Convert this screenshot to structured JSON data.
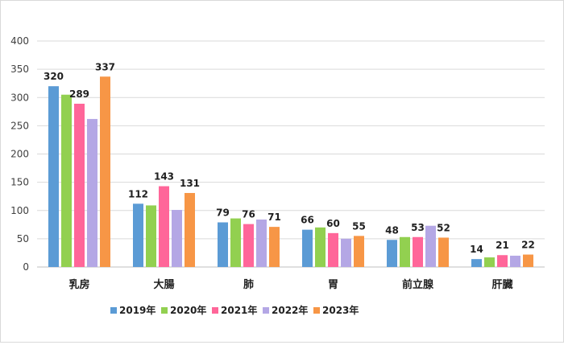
{
  "chart_data": {
    "type": "bar",
    "title": "",
    "xlabel": "",
    "ylabel": "",
    "ylim": [
      0,
      400
    ],
    "yticks": [
      0,
      50,
      100,
      150,
      200,
      250,
      300,
      350,
      400
    ],
    "grid": true,
    "legend_position": "bottom",
    "categories": [
      "乳房",
      "大腸",
      "肺",
      "胃",
      "前立腺",
      "肝臓"
    ],
    "series": [
      {
        "name": "2019年",
        "color": "#5b9bd5",
        "values": [
          320,
          112,
          79,
          66,
          48,
          14
        ],
        "labels": [
          "320",
          "112",
          "79",
          "66",
          "48",
          "14"
        ]
      },
      {
        "name": "2020年",
        "color": "#92d050",
        "values": [
          305,
          109,
          86,
          70,
          53,
          17
        ],
        "labels": [
          "",
          "",
          "",
          "",
          "",
          ""
        ]
      },
      {
        "name": "2021年",
        "color": "#ff6699",
        "values": [
          289,
          143,
          76,
          60,
          53,
          21
        ],
        "labels": [
          "289",
          "143",
          "76",
          "60",
          "53",
          "21"
        ]
      },
      {
        "name": "2022年",
        "color": "#b4a7e5",
        "values": [
          262,
          101,
          84,
          50,
          73,
          20
        ],
        "labels": [
          "",
          "",
          "",
          "",
          "",
          ""
        ]
      },
      {
        "name": "2023年",
        "color": "#f79646",
        "values": [
          337,
          131,
          71,
          55,
          52,
          22
        ],
        "labels": [
          "337",
          "131",
          "71",
          "55",
          "52",
          "22"
        ]
      }
    ]
  }
}
